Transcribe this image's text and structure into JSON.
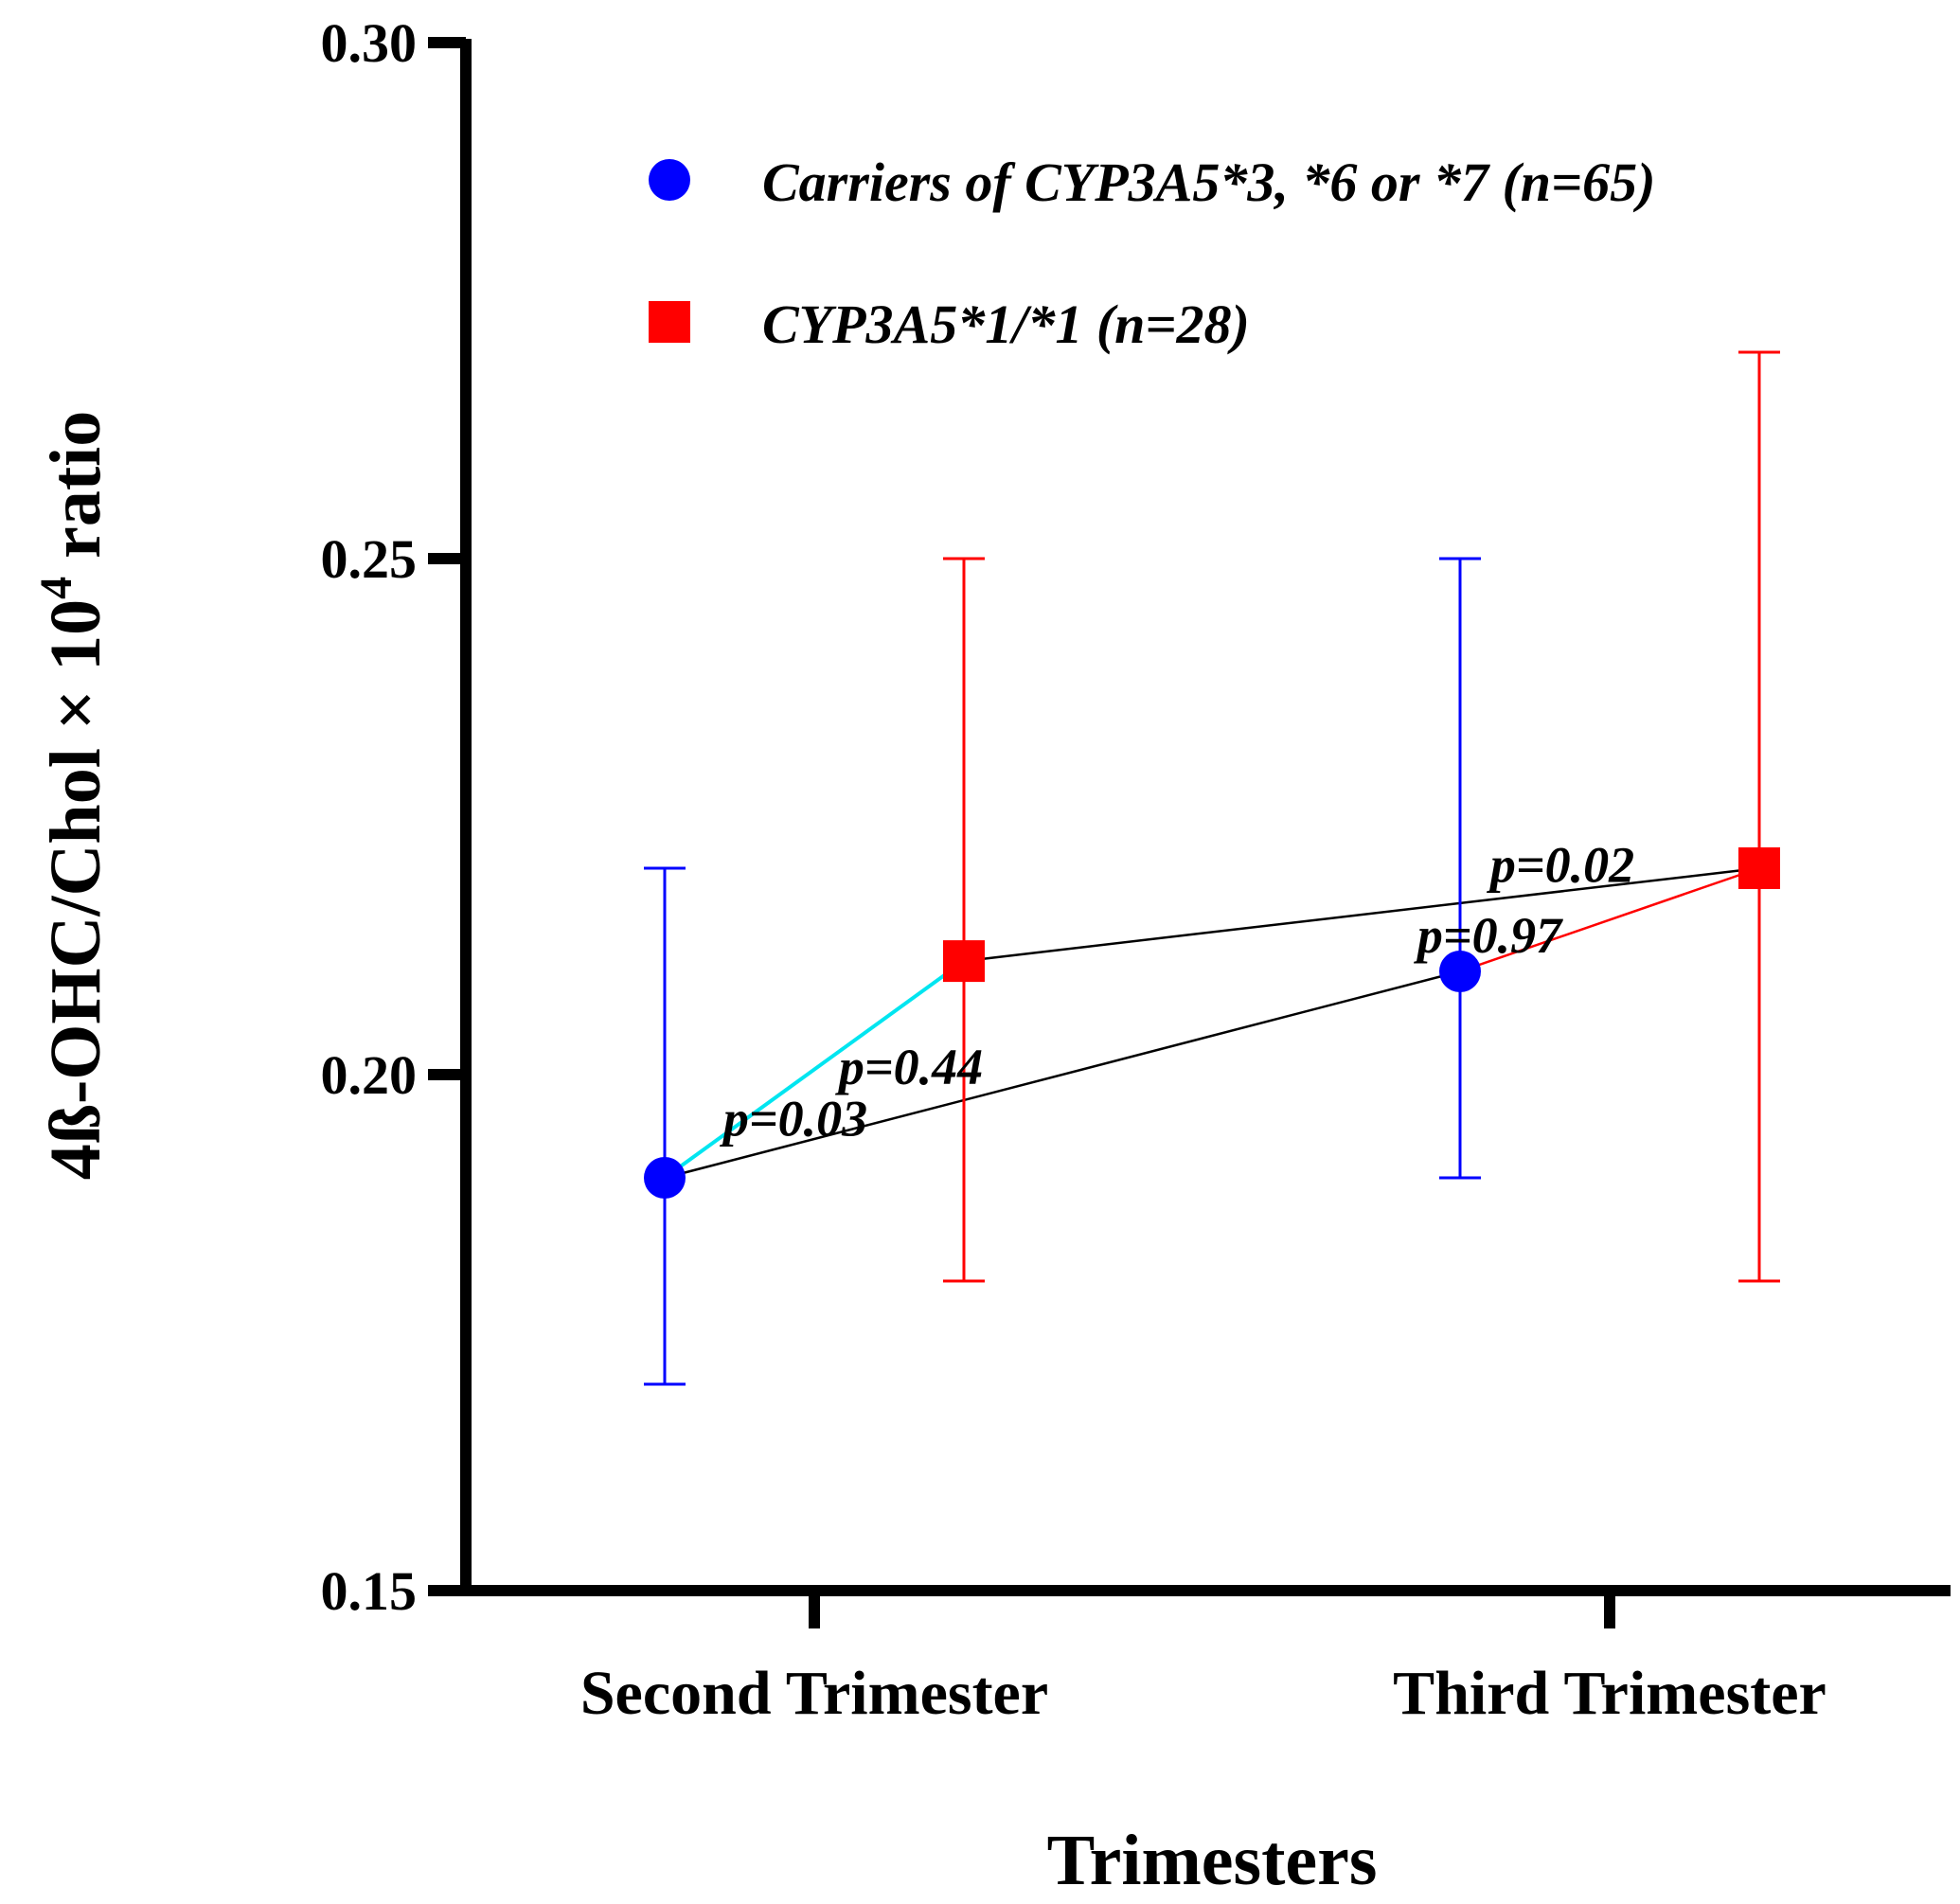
{
  "chart_data": {
    "type": "scatter",
    "title": "",
    "xlabel": "Trimesters",
    "ylabel": "4ß-OHC/Chol × 10",
    "ylabel_superscript": "4",
    "ylabel_suffix": " ratio",
    "ylim": [
      0.15,
      0.3
    ],
    "yticks": [
      "0.15",
      "0.20",
      "0.25",
      "0.30"
    ],
    "categories": [
      "Second Trimester",
      "Third Trimester"
    ],
    "series": [
      {
        "name": "Carriers of CYP3A5*3, *6 or *7 (n=65)",
        "marker": "circle",
        "color": "#0000ff",
        "values": [
          0.19,
          0.21
        ],
        "err_low": [
          0.17,
          0.19
        ],
        "err_high": [
          0.22,
          0.25
        ]
      },
      {
        "name": "CYP3A5*1/*1 (n=28)",
        "marker": "square",
        "color": "#ff0000",
        "values": [
          0.211,
          0.22
        ],
        "err_low": [
          0.18,
          0.18
        ],
        "err_high": [
          0.25,
          0.27
        ]
      }
    ],
    "comparisons": [
      {
        "label": "p=0.44",
        "from": [
          0,
          0
        ],
        "to": [
          1,
          0
        ],
        "color": "#000000"
      },
      {
        "label": "p=0.03",
        "from": [
          0,
          0
        ],
        "to": [
          0,
          1
        ],
        "color": "#00e5f0"
      },
      {
        "label": "p=0.02",
        "from": [
          1,
          0
        ],
        "to": [
          1,
          1
        ],
        "color": "#ff0000"
      },
      {
        "label": "p=0.97",
        "from": [
          0,
          1
        ],
        "to": [
          1,
          1
        ],
        "color": "#000000"
      }
    ],
    "legend_position": "top"
  }
}
